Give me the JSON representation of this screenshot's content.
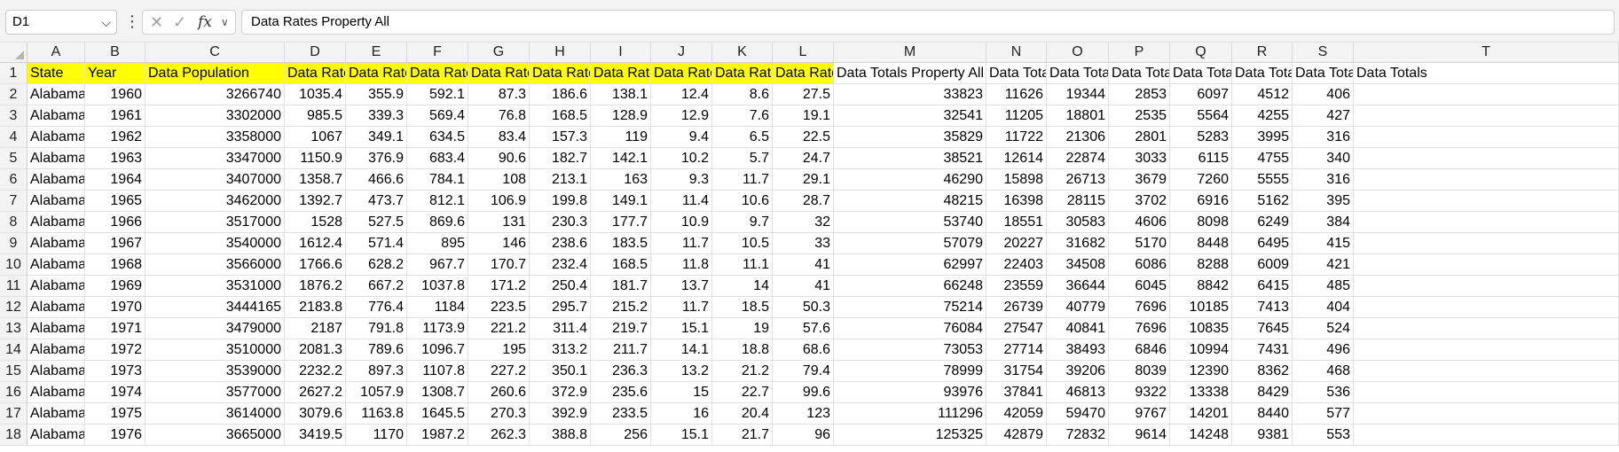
{
  "formula_bar": {
    "name_box": "D1",
    "more_icon": "more-vertical-icon",
    "cancel_icon": "cancel-x-icon",
    "enter_icon": "check-icon",
    "fx_label": "fx",
    "formula": "Data Rates Property All"
  },
  "colors": {
    "header_highlight": "#ffff00",
    "gridline": "#e1e1e1",
    "header_bg": "#f3f3f3"
  },
  "columns": [
    "A",
    "B",
    "C",
    "D",
    "E",
    "F",
    "G",
    "H",
    "I",
    "J",
    "K",
    "L",
    "M",
    "N",
    "O",
    "P",
    "Q",
    "R",
    "S",
    "T"
  ],
  "row_numbers": [
    "1",
    "2",
    "3",
    "4",
    "5",
    "6",
    "7",
    "8",
    "9",
    "10",
    "11",
    "12",
    "13",
    "14",
    "15",
    "16",
    "17",
    "18"
  ],
  "header_row": [
    "State",
    "Year",
    "Data Population",
    "Data Rates",
    "Data Rates",
    "Data Rates",
    "Data Rates",
    "Data Rates",
    "Data Rates",
    "Data Rates",
    "Data Rates",
    "Data Rates",
    "Data Totals Property All",
    "Data Totals",
    "Data Totals",
    "Data Totals",
    "Data Totals",
    "Data Totals",
    "Data Totals",
    "Data Totals"
  ],
  "rows": [
    [
      "Alabama",
      "1960",
      "3266740",
      "1035.4",
      "355.9",
      "592.1",
      "87.3",
      "186.6",
      "138.1",
      "12.4",
      "8.6",
      "27.5",
      "33823",
      "11626",
      "19344",
      "2853",
      "6097",
      "4512",
      "406"
    ],
    [
      "Alabama",
      "1961",
      "3302000",
      "985.5",
      "339.3",
      "569.4",
      "76.8",
      "168.5",
      "128.9",
      "12.9",
      "7.6",
      "19.1",
      "32541",
      "11205",
      "18801",
      "2535",
      "5564",
      "4255",
      "427"
    ],
    [
      "Alabama",
      "1962",
      "3358000",
      "1067",
      "349.1",
      "634.5",
      "83.4",
      "157.3",
      "119",
      "9.4",
      "6.5",
      "22.5",
      "35829",
      "11722",
      "21306",
      "2801",
      "5283",
      "3995",
      "316"
    ],
    [
      "Alabama",
      "1963",
      "3347000",
      "1150.9",
      "376.9",
      "683.4",
      "90.6",
      "182.7",
      "142.1",
      "10.2",
      "5.7",
      "24.7",
      "38521",
      "12614",
      "22874",
      "3033",
      "6115",
      "4755",
      "340"
    ],
    [
      "Alabama",
      "1964",
      "3407000",
      "1358.7",
      "466.6",
      "784.1",
      "108",
      "213.1",
      "163",
      "9.3",
      "11.7",
      "29.1",
      "46290",
      "15898",
      "26713",
      "3679",
      "7260",
      "5555",
      "316"
    ],
    [
      "Alabama",
      "1965",
      "3462000",
      "1392.7",
      "473.7",
      "812.1",
      "106.9",
      "199.8",
      "149.1",
      "11.4",
      "10.6",
      "28.7",
      "48215",
      "16398",
      "28115",
      "3702",
      "6916",
      "5162",
      "395"
    ],
    [
      "Alabama",
      "1966",
      "3517000",
      "1528",
      "527.5",
      "869.6",
      "131",
      "230.3",
      "177.7",
      "10.9",
      "9.7",
      "32",
      "53740",
      "18551",
      "30583",
      "4606",
      "8098",
      "6249",
      "384"
    ],
    [
      "Alabama",
      "1967",
      "3540000",
      "1612.4",
      "571.4",
      "895",
      "146",
      "238.6",
      "183.5",
      "11.7",
      "10.5",
      "33",
      "57079",
      "20227",
      "31682",
      "5170",
      "8448",
      "6495",
      "415"
    ],
    [
      "Alabama",
      "1968",
      "3566000",
      "1766.6",
      "628.2",
      "967.7",
      "170.7",
      "232.4",
      "168.5",
      "11.8",
      "11.1",
      "41",
      "62997",
      "22403",
      "34508",
      "6086",
      "8288",
      "6009",
      "421"
    ],
    [
      "Alabama",
      "1969",
      "3531000",
      "1876.2",
      "667.2",
      "1037.8",
      "171.2",
      "250.4",
      "181.7",
      "13.7",
      "14",
      "41",
      "66248",
      "23559",
      "36644",
      "6045",
      "8842",
      "6415",
      "485"
    ],
    [
      "Alabama",
      "1970",
      "3444165",
      "2183.8",
      "776.4",
      "1184",
      "223.5",
      "295.7",
      "215.2",
      "11.7",
      "18.5",
      "50.3",
      "75214",
      "26739",
      "40779",
      "7696",
      "10185",
      "7413",
      "404"
    ],
    [
      "Alabama",
      "1971",
      "3479000",
      "2187",
      "791.8",
      "1173.9",
      "221.2",
      "311.4",
      "219.7",
      "15.1",
      "19",
      "57.6",
      "76084",
      "27547",
      "40841",
      "7696",
      "10835",
      "7645",
      "524"
    ],
    [
      "Alabama",
      "1972",
      "3510000",
      "2081.3",
      "789.6",
      "1096.7",
      "195",
      "313.2",
      "211.7",
      "14.1",
      "18.8",
      "68.6",
      "73053",
      "27714",
      "38493",
      "6846",
      "10994",
      "7431",
      "496"
    ],
    [
      "Alabama",
      "1973",
      "3539000",
      "2232.2",
      "897.3",
      "1107.8",
      "227.2",
      "350.1",
      "236.3",
      "13.2",
      "21.2",
      "79.4",
      "78999",
      "31754",
      "39206",
      "8039",
      "12390",
      "8362",
      "468"
    ],
    [
      "Alabama",
      "1974",
      "3577000",
      "2627.2",
      "1057.9",
      "1308.7",
      "260.6",
      "372.9",
      "235.6",
      "15",
      "22.7",
      "99.6",
      "93976",
      "37841",
      "46813",
      "9322",
      "13338",
      "8429",
      "536"
    ],
    [
      "Alabama",
      "1975",
      "3614000",
      "3079.6",
      "1163.8",
      "1645.5",
      "270.3",
      "392.9",
      "233.5",
      "16",
      "20.4",
      "123",
      "111296",
      "42059",
      "59470",
      "9767",
      "14201",
      "8440",
      "577"
    ],
    [
      "Alabama",
      "1976",
      "3665000",
      "3419.5",
      "1170",
      "1987.2",
      "262.3",
      "388.8",
      "256",
      "15.1",
      "21.7",
      "96",
      "125325",
      "42879",
      "72832",
      "9614",
      "14248",
      "9381",
      "553"
    ]
  ]
}
